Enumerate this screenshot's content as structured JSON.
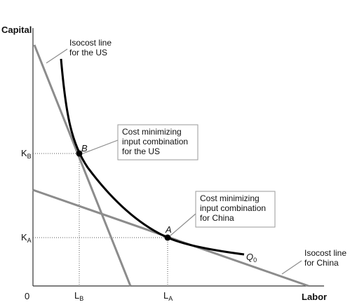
{
  "axes": {
    "y_title": "Capital",
    "x_title": "Labor",
    "origin": "0"
  },
  "ticks": {
    "kb": {
      "main": "K",
      "sub": "B"
    },
    "ka": {
      "main": "K",
      "sub": "A"
    },
    "lb": {
      "main": "L",
      "sub": "B"
    },
    "la": {
      "main": "L",
      "sub": "A"
    }
  },
  "points": {
    "b": "B",
    "a": "A"
  },
  "isoquant": {
    "main": "Q",
    "sub": "0"
  },
  "labels": {
    "isocost_us": [
      "Isocost line",
      "for the US"
    ],
    "isocost_china": [
      "Isocost line",
      "for China"
    ]
  },
  "callouts": {
    "us": [
      "Cost minimizing",
      "input combination",
      "for the US"
    ],
    "china": [
      "Cost minimizing",
      "input combination",
      "for China"
    ]
  },
  "colors": {
    "isoquant": "#000000",
    "isocost": "#8c8c8c",
    "guides": "#555555",
    "axis": "#333333"
  }
}
